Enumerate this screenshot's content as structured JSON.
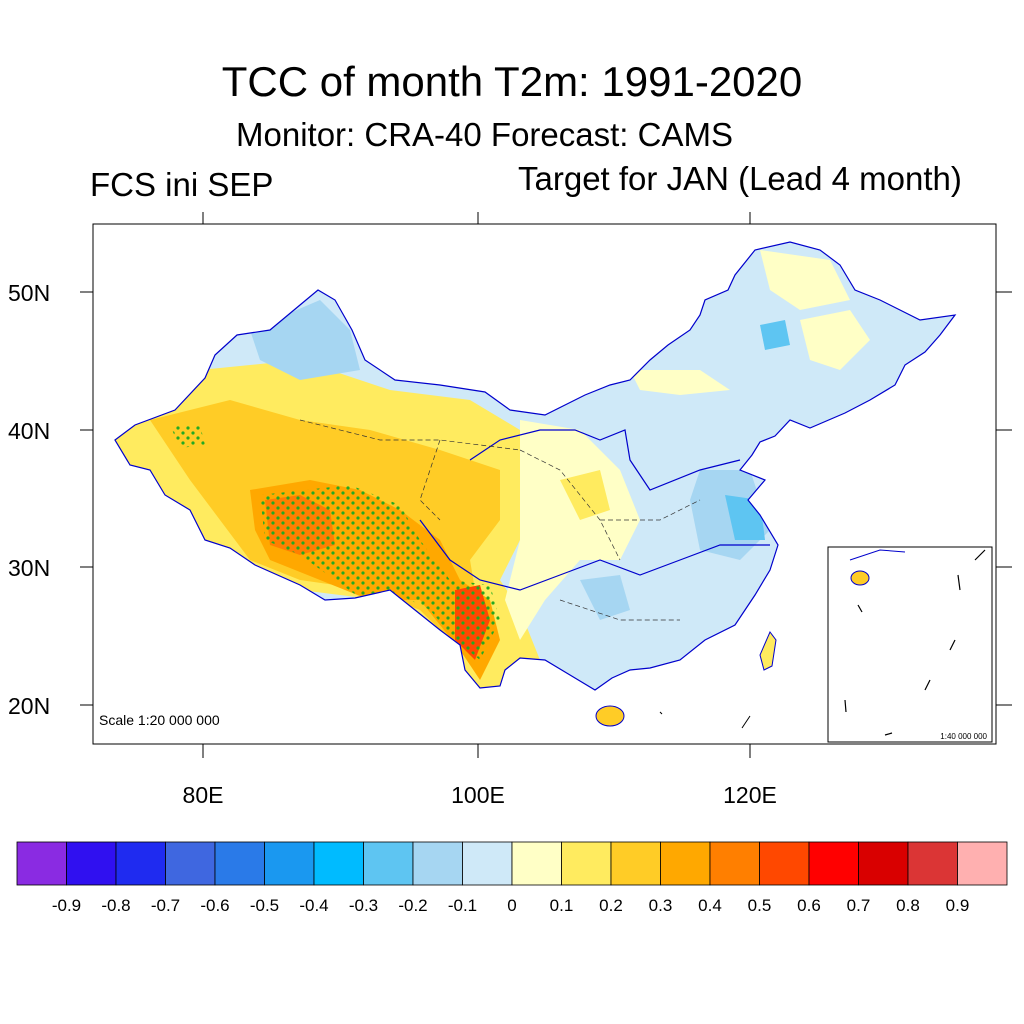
{
  "title": "TCC of month T2m: 1991-2020",
  "subtitle": "Monitor: CRA-40   Forecast: CAMS",
  "left_label": "FCS ini SEP",
  "right_label": "Target for JAN (Lead 4 month)",
  "map": {
    "scale_main": "Scale 1:20 000 000",
    "scale_inset": "1:40 000 000",
    "lat_labels": [
      "50N",
      "40N",
      "30N",
      "20N"
    ],
    "lon_labels": [
      "80E",
      "100E",
      "120E"
    ],
    "stipple_color": "#22aa22",
    "boundary_color": "#0000cc"
  },
  "colorbar": {
    "labels": [
      "-0.9",
      "-0.8",
      "-0.7",
      "-0.6",
      "-0.5",
      "-0.4",
      "-0.3",
      "-0.2",
      "-0.1",
      "0",
      "0.1",
      "0.2",
      "0.3",
      "0.4",
      "0.5",
      "0.6",
      "0.7",
      "0.8",
      "0.9"
    ],
    "colors": [
      "#8a2be2",
      "#3010f0",
      "#1f2bf0",
      "#3f67e0",
      "#2a7ae8",
      "#1a98f0",
      "#00bbff",
      "#5ec5f2",
      "#a6d6f2",
      "#cfe9f8",
      "#ffffc6",
      "#ffeb5f",
      "#ffcc26",
      "#ffa800",
      "#ff7f00",
      "#ff4800",
      "#ff0000",
      "#d90000",
      "#db3535",
      "#ffb0b0"
    ]
  }
}
